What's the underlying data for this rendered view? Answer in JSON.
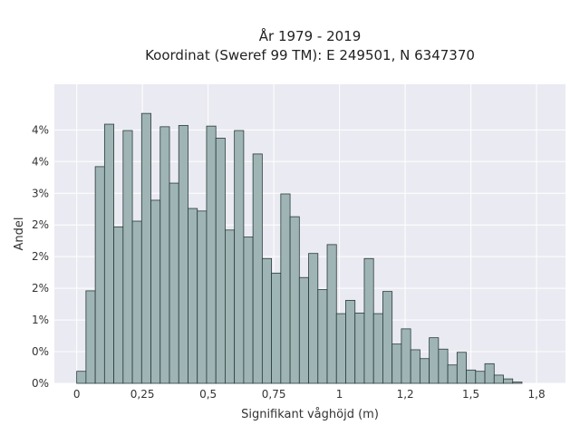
{
  "chart_data": {
    "type": "bar",
    "title_lines": [
      "År 1979 - 2019",
      "Koordinat (Sweref 99 TM): E 249501, N 6347370"
    ],
    "xlabel": "Signifikant våghöjd (m)",
    "ylabel": "Andel",
    "xlim": [
      -0.085,
      1.86
    ],
    "ylim": [
      0,
      0.0472
    ],
    "x_ticks": [
      {
        "value": 0,
        "label": "0"
      },
      {
        "value": 0.25,
        "label": "0,25"
      },
      {
        "value": 0.5,
        "label": "0,5"
      },
      {
        "value": 0.75,
        "label": "0,75"
      },
      {
        "value": 1.0,
        "label": "1"
      },
      {
        "value": 1.25,
        "label": "1,2"
      },
      {
        "value": 1.5,
        "label": "1,5"
      },
      {
        "value": 1.75,
        "label": "1,8"
      }
    ],
    "y_ticks": [
      {
        "value": 0,
        "label": "0%"
      },
      {
        "value": 0.005,
        "label": "0%"
      },
      {
        "value": 0.01,
        "label": "1%"
      },
      {
        "value": 0.015,
        "label": "2%"
      },
      {
        "value": 0.02,
        "label": "2%"
      },
      {
        "value": 0.025,
        "label": "2%"
      },
      {
        "value": 0.03,
        "label": "3%"
      },
      {
        "value": 0.035,
        "label": "4%"
      },
      {
        "value": 0.04,
        "label": "4%"
      }
    ],
    "bin_start": 0.0,
    "bin_width": 0.0353,
    "values": [
      0.0019,
      0.0146,
      0.0342,
      0.0409,
      0.0247,
      0.0399,
      0.0256,
      0.0426,
      0.0289,
      0.0405,
      0.0316,
      0.0407,
      0.0276,
      0.0272,
      0.0406,
      0.0387,
      0.0242,
      0.0399,
      0.0231,
      0.0362,
      0.0197,
      0.0174,
      0.0299,
      0.0263,
      0.0167,
      0.0205,
      0.0148,
      0.0219,
      0.011,
      0.0131,
      0.0111,
      0.0197,
      0.011,
      0.0145,
      0.0062,
      0.0086,
      0.0053,
      0.0039,
      0.0072,
      0.0054,
      0.0029,
      0.0049,
      0.0021,
      0.0019,
      0.0031,
      0.0013,
      0.0007,
      0.0002
    ]
  },
  "colors": {
    "plot_bg": "#eaeaf2",
    "grid": "#ffffff",
    "bar_fill": "#9fb5b5",
    "bar_edge": "#2a3a3a"
  }
}
